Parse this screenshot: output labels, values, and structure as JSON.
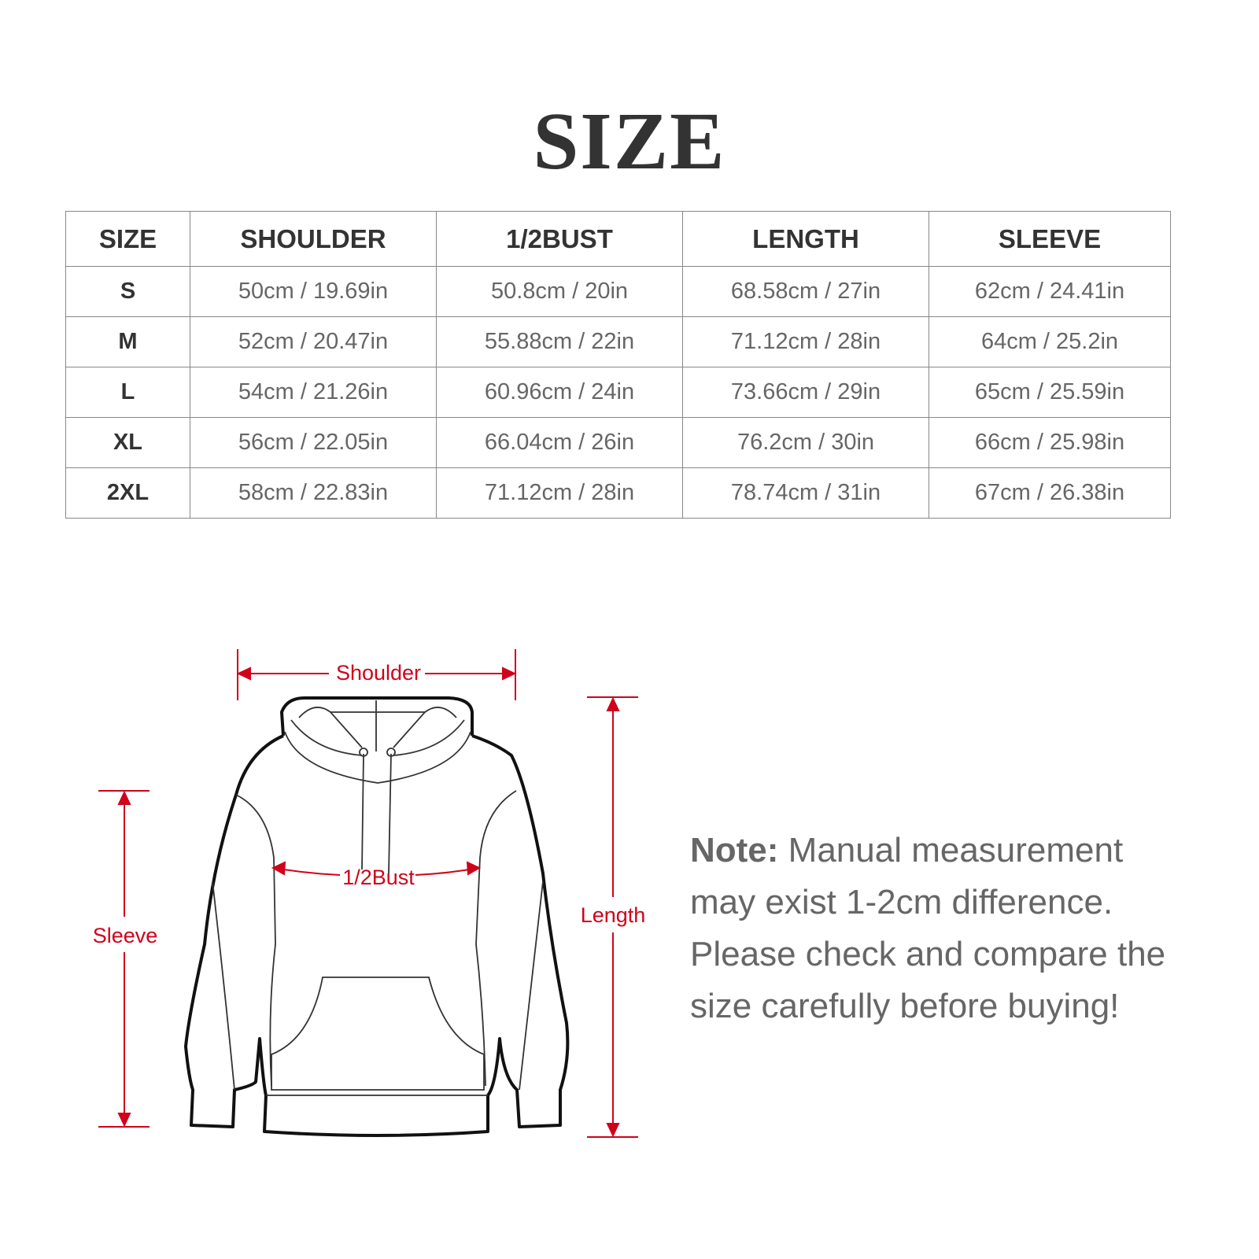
{
  "title": "SIZE",
  "table": {
    "headers": [
      "SIZE",
      "SHOULDER",
      "1/2BUST",
      "LENGTH",
      "SLEEVE"
    ],
    "rows": [
      [
        "S",
        "50cm / 19.69in",
        "50.8cm / 20in",
        "68.58cm / 27in",
        "62cm / 24.41in"
      ],
      [
        "M",
        "52cm / 20.47in",
        "55.88cm / 22in",
        "71.12cm / 28in",
        "64cm / 25.2in"
      ],
      [
        "L",
        "54cm / 21.26in",
        "60.96cm / 24in",
        "73.66cm / 29in",
        "65cm / 25.59in"
      ],
      [
        "XL",
        "56cm / 22.05in",
        "66.04cm / 26in",
        "76.2cm / 30in",
        "66cm / 25.98in"
      ],
      [
        "2XL",
        "58cm / 22.83in",
        "71.12cm / 28in",
        "78.74cm / 31in",
        "67cm / 26.38in"
      ]
    ]
  },
  "diagram": {
    "shoulder_label": "Shoulder",
    "bust_label": "1/2Bust",
    "sleeve_label": "Sleeve",
    "length_label": "Length",
    "accent_color": "#d0021b"
  },
  "note": {
    "label": "Note:",
    "text": " Manual measurement may exist 1-2cm difference. Please check and compare the size carefully before buying!"
  }
}
